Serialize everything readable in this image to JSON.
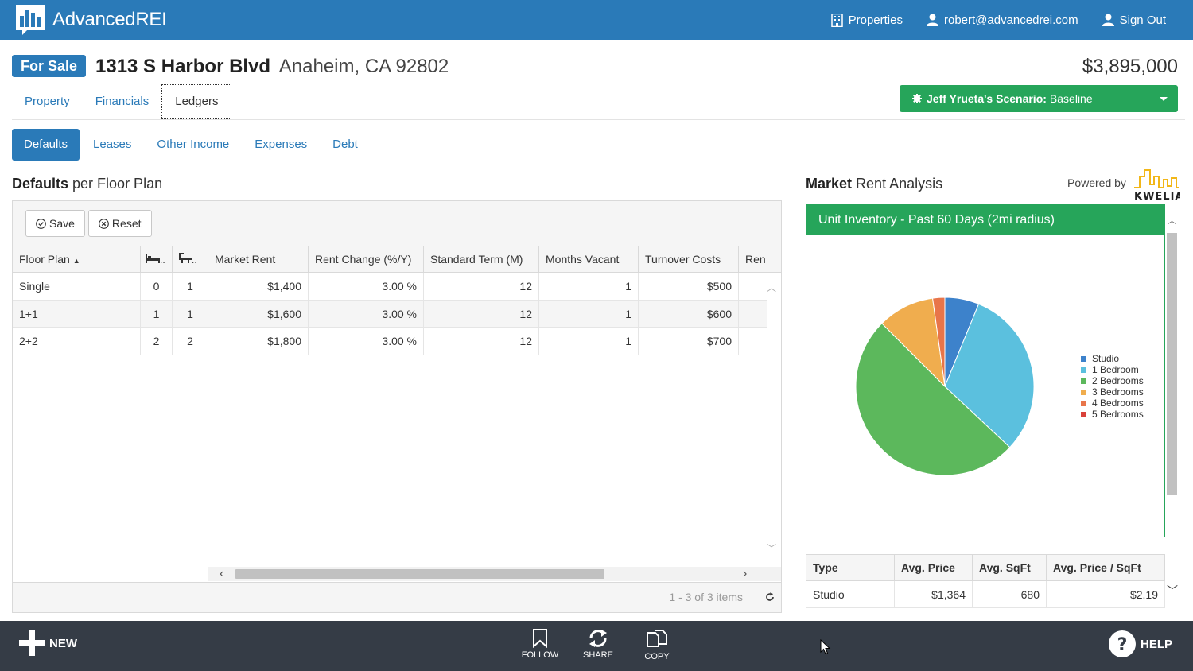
{
  "app": {
    "name": "AdvancedREI",
    "nav": {
      "properties": "Properties",
      "user": "robert@advancedrei.com",
      "signout": "Sign Out"
    }
  },
  "property": {
    "status": "For Sale",
    "street": "1313 S Harbor Blvd",
    "city": "Anaheim, CA 92802",
    "price": "$3,895,000"
  },
  "tabs": [
    "Property",
    "Financials",
    "Ledgers"
  ],
  "scenario": {
    "owner": "Jeff Yrueta's Scenario:",
    "name": "Baseline"
  },
  "subtabs": [
    "Defaults",
    "Leases",
    "Other Income",
    "Expenses",
    "Debt"
  ],
  "defaults": {
    "title_bold": "Defaults",
    "title_rest": "per Floor Plan",
    "save": "Save",
    "reset": "Reset",
    "columns": [
      "Floor Plan",
      "Market Rent",
      "Rent Change (%/Y)",
      "Standard Term (M)",
      "Months Vacant",
      "Turnover Costs",
      "Ren"
    ],
    "rows": [
      {
        "plan": "Single",
        "beds": "0",
        "baths": "1",
        "rent": "$1,400",
        "change": "3.00 %",
        "term": "12",
        "vacant": "1",
        "turnover": "$500"
      },
      {
        "plan": "1+1",
        "beds": "1",
        "baths": "1",
        "rent": "$1,600",
        "change": "3.00 %",
        "term": "12",
        "vacant": "1",
        "turnover": "$600"
      },
      {
        "plan": "2+2",
        "beds": "2",
        "baths": "2",
        "rent": "$1,800",
        "change": "3.00 %",
        "term": "12",
        "vacant": "1",
        "turnover": "$700"
      }
    ],
    "pager": "1 - 3 of 3 items"
  },
  "market": {
    "title_bold": "Market",
    "title_rest": "Rent Analysis",
    "powered": "Powered by",
    "provider": "KWELIA",
    "panel_title": "Unit Inventory - Past 60 Days (2mi radius)",
    "table_columns": [
      "Type",
      "Avg. Price",
      "Avg. SqFt",
      "Avg. Price / SqFt"
    ],
    "table_rows": [
      {
        "type": "Studio",
        "price": "$1,364",
        "sqft": "680",
        "ppsf": "$2.19"
      }
    ]
  },
  "chart_data": {
    "type": "pie",
    "categories": [
      "Studio",
      "1 Bedroom",
      "2 Bedrooms",
      "3 Bedrooms",
      "4 Bedrooms",
      "5 Bedrooms"
    ],
    "values": [
      6.2,
      30.8,
      50.5,
      10.3,
      2.2,
      0
    ],
    "colors": [
      "#3d82cb",
      "#5bc0de",
      "#5cb85c",
      "#f0ad4e",
      "#e8754a",
      "#d9413a"
    ],
    "legend_position": "right"
  },
  "bottombar": {
    "new": "NEW",
    "follow": "FOLLOW",
    "share": "SHARE",
    "copy": "COPY",
    "help": "HELP"
  }
}
